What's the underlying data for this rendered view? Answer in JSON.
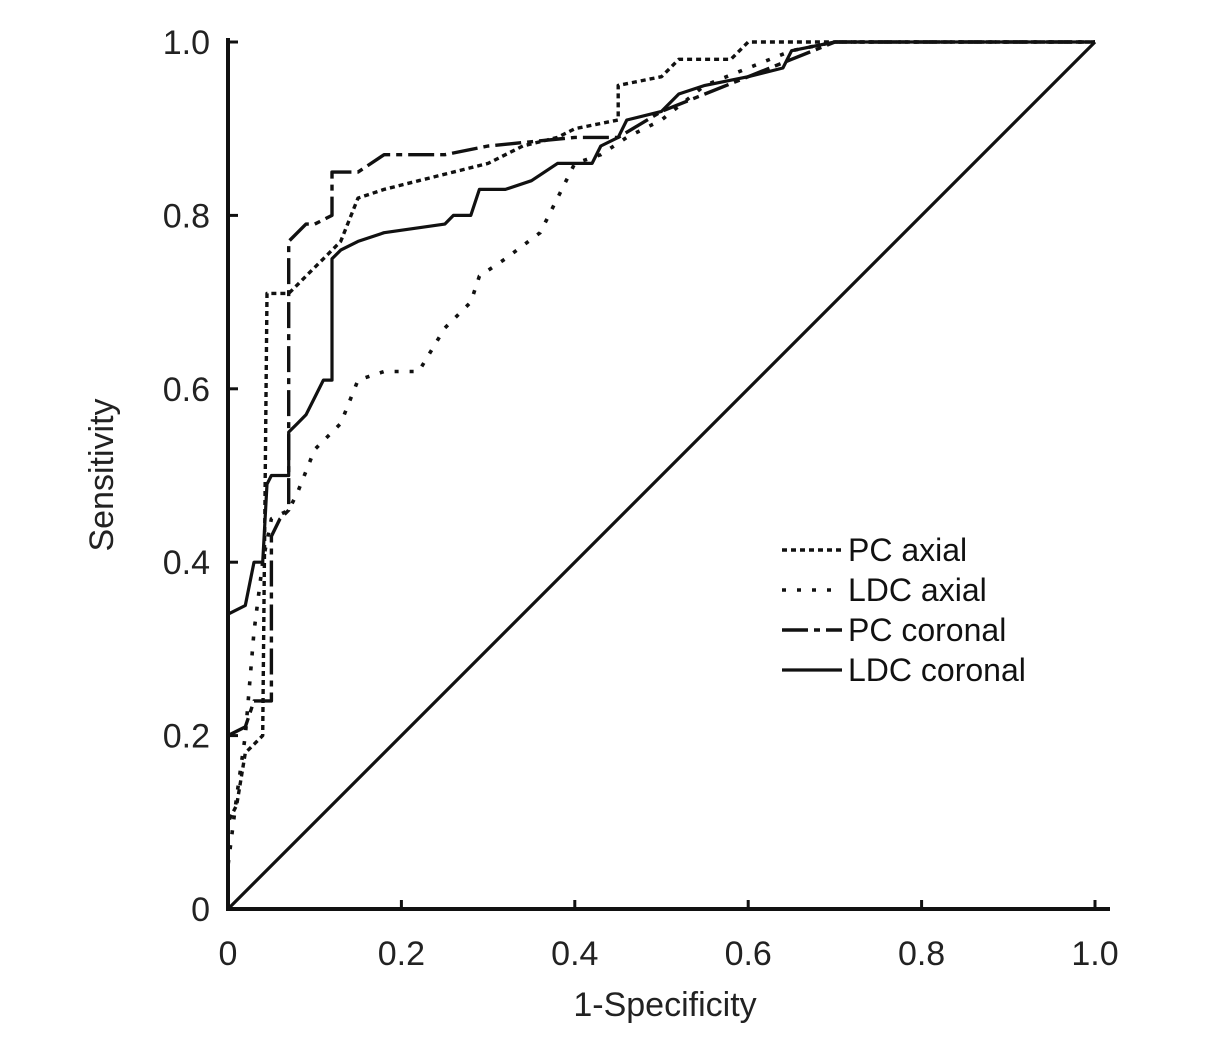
{
  "chart_data": {
    "type": "line",
    "title": "",
    "xlabel": "1-Specificity",
    "ylabel": "Sensitivity",
    "xlim": [
      0,
      1
    ],
    "ylim": [
      0,
      1
    ],
    "x_ticks": [
      0,
      0.2,
      0.4,
      0.6,
      0.8,
      1.0
    ],
    "x_tick_labels": [
      "0",
      "0.2",
      "0.4",
      "0.6",
      "0.8",
      "1.0"
    ],
    "y_ticks": [
      0,
      0.2,
      0.4,
      0.6,
      0.8,
      1.0
    ],
    "y_tick_labels": [
      "0",
      "0.2",
      "0.4",
      "0.6",
      "0.8",
      "1.0"
    ],
    "grid": false,
    "legend_position": "center-right",
    "series": [
      {
        "name": "PC axial",
        "style": "dotted",
        "color": "#111111",
        "points": [
          [
            0,
            0
          ],
          [
            0,
            0.1
          ],
          [
            0.01,
            0.12
          ],
          [
            0.02,
            0.18
          ],
          [
            0.03,
            0.19
          ],
          [
            0.04,
            0.2
          ],
          [
            0.045,
            0.71
          ],
          [
            0.07,
            0.71
          ],
          [
            0.08,
            0.72
          ],
          [
            0.1,
            0.74
          ],
          [
            0.11,
            0.75
          ],
          [
            0.13,
            0.77
          ],
          [
            0.15,
            0.82
          ],
          [
            0.18,
            0.83
          ],
          [
            0.22,
            0.84
          ],
          [
            0.3,
            0.86
          ],
          [
            0.34,
            0.88
          ],
          [
            0.38,
            0.89
          ],
          [
            0.4,
            0.9
          ],
          [
            0.45,
            0.91
          ],
          [
            0.45,
            0.95
          ],
          [
            0.5,
            0.96
          ],
          [
            0.52,
            0.98
          ],
          [
            0.58,
            0.98
          ],
          [
            0.6,
            1.0
          ],
          [
            1.0,
            1.0
          ]
        ]
      },
      {
        "name": "LDC axial",
        "style": "sparse-dotted",
        "color": "#111111",
        "points": [
          [
            0,
            0
          ],
          [
            0,
            0.05
          ],
          [
            0.01,
            0.13
          ],
          [
            0.02,
            0.2
          ],
          [
            0.03,
            0.32
          ],
          [
            0.04,
            0.4
          ],
          [
            0.05,
            0.45
          ],
          [
            0.07,
            0.46
          ],
          [
            0.08,
            0.48
          ],
          [
            0.1,
            0.53
          ],
          [
            0.13,
            0.56
          ],
          [
            0.15,
            0.61
          ],
          [
            0.18,
            0.62
          ],
          [
            0.22,
            0.62
          ],
          [
            0.25,
            0.67
          ],
          [
            0.28,
            0.7
          ],
          [
            0.29,
            0.73
          ],
          [
            0.32,
            0.75
          ],
          [
            0.36,
            0.78
          ],
          [
            0.38,
            0.82
          ],
          [
            0.4,
            0.86
          ],
          [
            0.43,
            0.87
          ],
          [
            0.46,
            0.89
          ],
          [
            0.5,
            0.91
          ],
          [
            0.55,
            0.95
          ],
          [
            0.6,
            0.97
          ],
          [
            0.65,
            0.99
          ],
          [
            0.7,
            1.0
          ],
          [
            1.0,
            1.0
          ]
        ]
      },
      {
        "name": "PC coronal",
        "style": "dash-dot",
        "color": "#111111",
        "points": [
          [
            0,
            0
          ],
          [
            0,
            0.2
          ],
          [
            0.02,
            0.21
          ],
          [
            0.03,
            0.24
          ],
          [
            0.05,
            0.24
          ],
          [
            0.05,
            0.43
          ],
          [
            0.06,
            0.45
          ],
          [
            0.07,
            0.46
          ],
          [
            0.07,
            0.77
          ],
          [
            0.08,
            0.78
          ],
          [
            0.09,
            0.79
          ],
          [
            0.1,
            0.79
          ],
          [
            0.12,
            0.8
          ],
          [
            0.12,
            0.85
          ],
          [
            0.15,
            0.85
          ],
          [
            0.18,
            0.87
          ],
          [
            0.25,
            0.87
          ],
          [
            0.3,
            0.88
          ],
          [
            0.4,
            0.89
          ],
          [
            0.45,
            0.89
          ],
          [
            0.5,
            0.92
          ],
          [
            0.55,
            0.94
          ],
          [
            0.6,
            0.96
          ],
          [
            0.65,
            0.98
          ],
          [
            0.7,
            1.0
          ],
          [
            1.0,
            1.0
          ]
        ]
      },
      {
        "name": "LDC coronal",
        "style": "solid",
        "color": "#111111",
        "points": [
          [
            0,
            0
          ],
          [
            0,
            0.34
          ],
          [
            0.02,
            0.35
          ],
          [
            0.03,
            0.4
          ],
          [
            0.04,
            0.4
          ],
          [
            0.045,
            0.49
          ],
          [
            0.05,
            0.5
          ],
          [
            0.07,
            0.5
          ],
          [
            0.07,
            0.55
          ],
          [
            0.08,
            0.56
          ],
          [
            0.09,
            0.57
          ],
          [
            0.1,
            0.59
          ],
          [
            0.11,
            0.61
          ],
          [
            0.12,
            0.61
          ],
          [
            0.12,
            0.75
          ],
          [
            0.13,
            0.76
          ],
          [
            0.15,
            0.77
          ],
          [
            0.18,
            0.78
          ],
          [
            0.25,
            0.79
          ],
          [
            0.26,
            0.8
          ],
          [
            0.28,
            0.8
          ],
          [
            0.29,
            0.83
          ],
          [
            0.32,
            0.83
          ],
          [
            0.35,
            0.84
          ],
          [
            0.38,
            0.86
          ],
          [
            0.42,
            0.86
          ],
          [
            0.43,
            0.88
          ],
          [
            0.45,
            0.89
          ],
          [
            0.46,
            0.91
          ],
          [
            0.5,
            0.92
          ],
          [
            0.52,
            0.94
          ],
          [
            0.55,
            0.95
          ],
          [
            0.6,
            0.96
          ],
          [
            0.64,
            0.97
          ],
          [
            0.65,
            0.99
          ],
          [
            0.7,
            1.0
          ],
          [
            1.0,
            1.0
          ]
        ]
      },
      {
        "name": "",
        "style": "solid",
        "color": "#111111",
        "points": [
          [
            0,
            0
          ],
          [
            1,
            1
          ]
        ]
      }
    ]
  }
}
